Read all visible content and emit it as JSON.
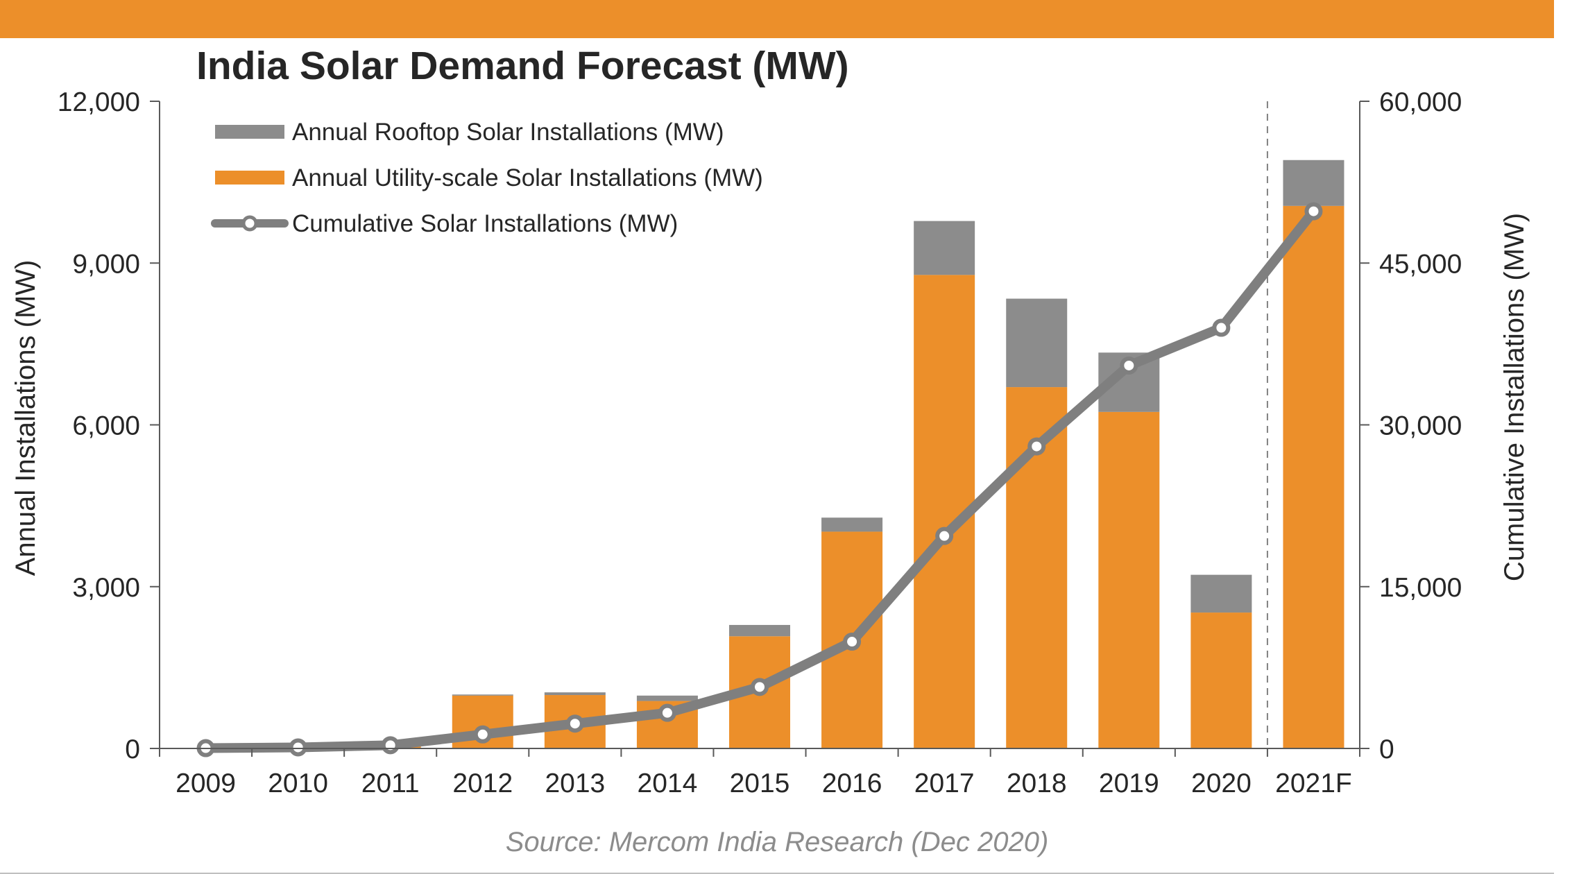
{
  "colors": {
    "accent": "#EC8F2A",
    "rooftop": "#8C8C8C",
    "line": "#7F7F7F",
    "axis": "#595959"
  },
  "title": "India Solar Demand Forecast (MW)",
  "source": "Source: Mercom India Research (Dec 2020)",
  "chart_data": {
    "type": "bar",
    "stacked": true,
    "title": "India Solar Demand Forecast (MW)",
    "categories": [
      "2009",
      "2010",
      "2011",
      "2012",
      "2013",
      "2014",
      "2015",
      "2016",
      "2017",
      "2018",
      "2019",
      "2020",
      "2021F"
    ],
    "ylabel": "Annual Installations (MW)",
    "y2label": "Cumulative Installations (MW)",
    "ylim": [
      0,
      12000
    ],
    "y2lim": [
      0,
      60000
    ],
    "yticks": [
      "0",
      "3,000",
      "6,000",
      "9,000",
      "12,000"
    ],
    "y2ticks": [
      "0",
      "15,000",
      "30,000",
      "45,000",
      "60,000"
    ],
    "yticks_values": [
      0,
      3000,
      6000,
      9000,
      12000
    ],
    "y2ticks_values": [
      0,
      15000,
      30000,
      45000,
      60000
    ],
    "forecast_divider_after": "2020",
    "legend_position": "top-left",
    "series": [
      {
        "name": "Annual Utility-scale Solar Installations (MW)",
        "type": "bar",
        "axis": "left",
        "values": [
          10,
          40,
          130,
          980,
          990,
          880,
          2080,
          4020,
          8780,
          6700,
          6240,
          2520,
          10060
        ]
      },
      {
        "name": "Annual Rooftop Solar Installations (MW)",
        "type": "bar",
        "axis": "left",
        "values": [
          0,
          0,
          0,
          20,
          50,
          100,
          210,
          260,
          1000,
          1640,
          1100,
          700,
          850
        ]
      },
      {
        "name": "Cumulative Solar Installations (MW)",
        "type": "line",
        "axis": "right",
        "values": [
          30,
          100,
          300,
          1300,
          2300,
          3300,
          5700,
          9900,
          19700,
          28000,
          35500,
          39000,
          49800
        ]
      }
    ]
  }
}
